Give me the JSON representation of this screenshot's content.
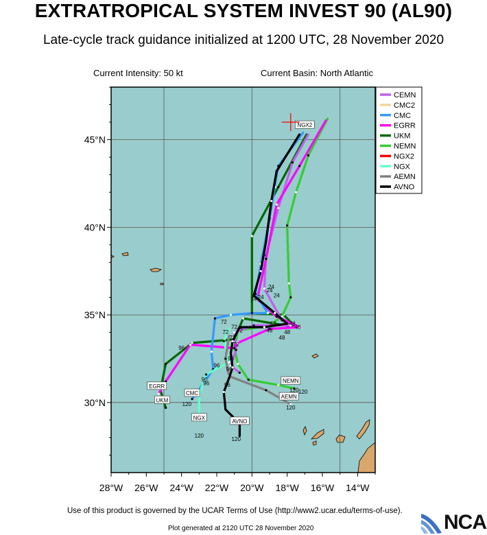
{
  "header": {
    "title": "EXTRATROPICAL SYSTEM INVEST 90 (AL90)",
    "subtitle": "Late-cycle track guidance initialized at 1200 UTC, 28 November 2020",
    "intensity": "Current Intensity: 50 kt",
    "basin": "Current Basin: North Atlantic"
  },
  "map": {
    "ocean_color": "#99cccc",
    "land_color": "#d9a66b",
    "lon_range": [
      -28,
      -13
    ],
    "lat_range": [
      26,
      48
    ],
    "x_ticks": [
      "28°W",
      "26°W",
      "24°W",
      "22°W",
      "20°W",
      "18°W",
      "16°W",
      "14°W"
    ],
    "y_ticks": [
      "30°N",
      "35°N",
      "40°N",
      "45°N"
    ],
    "current_position": {
      "lon": -17.8,
      "lat": 46.0,
      "color": "#ff0000"
    }
  },
  "legend": [
    {
      "name": "CEMN",
      "color": "#c060f0"
    },
    {
      "name": "CMC2",
      "color": "#f5d5a0"
    },
    {
      "name": "CMC",
      "color": "#3399ff"
    },
    {
      "name": "EGRR",
      "color": "#ff00ff"
    },
    {
      "name": "UKM",
      "color": "#006600"
    },
    {
      "name": "NEMN",
      "color": "#33cc33"
    },
    {
      "name": "NGX2",
      "color": "#ff0000"
    },
    {
      "name": "NGX",
      "color": "#66ffcc"
    },
    {
      "name": "AEMN",
      "color": "#808080"
    },
    {
      "name": "AVNO",
      "color": "#000000"
    }
  ],
  "tracks": [
    {
      "name": "UKM",
      "color": "#006600",
      "points": [
        [
          -16.9,
          45.3
        ],
        [
          -18.5,
          42.3
        ],
        [
          -20.0,
          39.5
        ],
        [
          -20.0,
          35.1
        ],
        [
          -18.2,
          35.0
        ],
        [
          -17.5,
          34.3
        ],
        [
          -20.5,
          34.8
        ],
        [
          -21.0,
          33.6
        ],
        [
          -23.4,
          33.4
        ],
        [
          -24.9,
          32.2
        ],
        [
          -25.2,
          30.7
        ],
        [
          -24.9,
          29.7
        ]
      ]
    },
    {
      "name": "NEMN",
      "color": "#33cc33",
      "points": [
        [
          -15.7,
          46.2
        ],
        [
          -16.8,
          44.1
        ],
        [
          -17.5,
          42.0
        ],
        [
          -18.0,
          40.1
        ],
        [
          -17.9,
          36.8
        ],
        [
          -17.8,
          36.0
        ],
        [
          -18.3,
          34.9
        ],
        [
          -19.0,
          34.4
        ],
        [
          -20.8,
          34.1
        ],
        [
          -21.0,
          33.1
        ],
        [
          -20.8,
          32.2
        ],
        [
          -20.2,
          31.3
        ],
        [
          -18.5,
          31.0
        ],
        [
          -17.6,
          30.8
        ]
      ]
    },
    {
      "name": "CEMN",
      "color": "#c060f0",
      "points": [
        [
          -16.8,
          45.3
        ],
        [
          -17.7,
          43.7
        ],
        [
          -18.5,
          41.1
        ],
        [
          -19.2,
          38.4
        ],
        [
          -19.3,
          36.5
        ],
        [
          -18.3,
          34.7
        ],
        [
          -17.8,
          34.4
        ],
        [
          -19.9,
          34.4
        ],
        [
          -21.0,
          34.0
        ],
        [
          -20.9,
          33.0
        ],
        [
          -21.2,
          32.1
        ],
        [
          -20.7,
          31.7
        ]
      ]
    },
    {
      "name": "EGRR",
      "color": "#ff00ff",
      "points": [
        [
          -15.8,
          46.1
        ],
        [
          -17.3,
          43.5
        ],
        [
          -18.6,
          41.3
        ],
        [
          -19.2,
          38.2
        ],
        [
          -19.7,
          35.9
        ],
        [
          -18.6,
          34.9
        ],
        [
          -17.3,
          34.3
        ],
        [
          -19.0,
          34.2
        ],
        [
          -20.8,
          33.4
        ],
        [
          -21.0,
          33.1
        ],
        [
          -23.5,
          33.3
        ],
        [
          -24.9,
          31.2
        ],
        [
          -25.3,
          30.5
        ]
      ]
    },
    {
      "name": "CMC",
      "color": "#3399ff",
      "points": [
        [
          -17.1,
          45.4
        ],
        [
          -18.5,
          43.5
        ],
        [
          -18.7,
          42.3
        ],
        [
          -19.0,
          40.5
        ],
        [
          -19.5,
          37.9
        ],
        [
          -19.8,
          36.2
        ],
        [
          -19.1,
          35.1
        ],
        [
          -20.0,
          35.1
        ],
        [
          -21.2,
          35.0
        ],
        [
          -22.1,
          34.8
        ],
        [
          -22.3,
          32.9
        ],
        [
          -22.2,
          31.9
        ],
        [
          -22.6,
          31.3
        ],
        [
          -23.4,
          30.2
        ]
      ]
    },
    {
      "name": "NGX",
      "color": "#66ffcc",
      "points": [
        [
          -21.3,
          34.2
        ],
        [
          -21.6,
          33.5
        ],
        [
          -21.3,
          32.3
        ],
        [
          -22.6,
          31.6
        ],
        [
          -23.0,
          30.4
        ],
        [
          -23.0,
          29.3
        ]
      ]
    },
    {
      "name": "AEMN",
      "color": "#808080",
      "points": [
        [
          -21.3,
          33.8
        ],
        [
          -21.5,
          32.5
        ],
        [
          -21.3,
          31.5
        ],
        [
          -19.2,
          30.7
        ],
        [
          -17.8,
          29.9
        ]
      ]
    },
    {
      "name": "AVNO",
      "color": "#000000",
      "points": [
        [
          -17.3,
          45.3
        ],
        [
          -18.6,
          43.2
        ],
        [
          -18.9,
          41.5
        ],
        [
          -19.2,
          39.2
        ],
        [
          -19.5,
          37.5
        ],
        [
          -19.9,
          36.1
        ],
        [
          -18.7,
          35.1
        ],
        [
          -18.0,
          34.5
        ],
        [
          -19.3,
          34.3
        ],
        [
          -20.7,
          34.3
        ],
        [
          -21.1,
          33.5
        ],
        [
          -21.2,
          32.8
        ],
        [
          -21.1,
          32.0
        ],
        [
          -21.3,
          31.4
        ],
        [
          -21.6,
          30.6
        ],
        [
          -21.5,
          29.6
        ],
        [
          -20.7,
          28.8
        ],
        [
          -20.7,
          28.1
        ]
      ]
    }
  ],
  "end_labels": [
    {
      "text": "NGX2",
      "lon": -17.0,
      "lat": 45.8
    },
    {
      "text": "NEMN",
      "lon": -17.8,
      "lat": 31.2
    },
    {
      "text": "AEMN",
      "lon": -17.9,
      "lat": 30.3
    },
    {
      "text": "EGRR",
      "lon": -25.4,
      "lat": 30.9
    },
    {
      "text": "UKM",
      "lon": -25.1,
      "lat": 30.1
    },
    {
      "text": "CMC",
      "lon": -23.4,
      "lat": 30.5
    },
    {
      "text": "NGX",
      "lon": -23.0,
      "lat": 29.1
    },
    {
      "text": "AVNO",
      "lon": -20.7,
      "lat": 28.9
    }
  ],
  "hour_labels": [
    {
      "text": "24",
      "lon": -19.9,
      "lat": 35.8
    },
    {
      "text": "24",
      "lon": -19.5,
      "lat": 35.9
    },
    {
      "text": "24",
      "lon": -19.0,
      "lat": 36.3
    },
    {
      "text": "24",
      "lon": -18.9,
      "lat": 36.5
    },
    {
      "text": "24",
      "lon": -18.6,
      "lat": 36.0
    },
    {
      "text": "48",
      "lon": -18.8,
      "lat": 34.4
    },
    {
      "text": "48",
      "lon": -17.7,
      "lat": 34.4
    },
    {
      "text": "48",
      "lon": -18.0,
      "lat": 33.9
    },
    {
      "text": "48",
      "lon": -19.0,
      "lat": 34.0
    },
    {
      "text": "48",
      "lon": -18.3,
      "lat": 33.6
    },
    {
      "text": "48",
      "lon": -17.4,
      "lat": 34.2
    },
    {
      "text": "72",
      "lon": -21.6,
      "lat": 34.5
    },
    {
      "text": "72",
      "lon": -21.5,
      "lat": 33.9
    },
    {
      "text": "72",
      "lon": -21.0,
      "lat": 34.2
    },
    {
      "text": "72",
      "lon": -20.7,
      "lat": 34.0
    },
    {
      "text": "72",
      "lon": -21.1,
      "lat": 33.6
    },
    {
      "text": "72",
      "lon": -20.9,
      "lat": 33.2
    },
    {
      "text": "96",
      "lon": -21.2,
      "lat": 32.4
    },
    {
      "text": "96",
      "lon": -24.0,
      "lat": 33.0
    },
    {
      "text": "96",
      "lon": -22.0,
      "lat": 32.0
    },
    {
      "text": "96",
      "lon": -21.3,
      "lat": 31.8
    },
    {
      "text": "96",
      "lon": -22.7,
      "lat": 31.2
    },
    {
      "text": "96",
      "lon": -22.6,
      "lat": 31.0
    },
    {
      "text": "96",
      "lon": -21.4,
      "lat": 30.9
    },
    {
      "text": "120",
      "lon": -17.6,
      "lat": 30.6
    },
    {
      "text": "120",
      "lon": -17.1,
      "lat": 30.5
    },
    {
      "text": "120",
      "lon": -17.8,
      "lat": 29.6
    },
    {
      "text": "120",
      "lon": -23.7,
      "lat": 29.8
    },
    {
      "text": "120",
      "lon": -23.0,
      "lat": 28.0
    },
    {
      "text": "120",
      "lon": -20.9,
      "lat": 27.8
    }
  ],
  "footer": {
    "terms": "Use of this product is governed by the UCAR Terms of Use (http://www2.ucar.edu/terms-of-use).",
    "generated": "Plot generated at 2120 UTC  28 November 2020",
    "logo_text": "NCAR"
  }
}
